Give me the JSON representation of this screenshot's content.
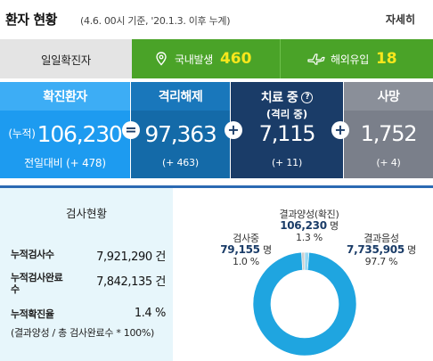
{
  "header": {
    "title": "환자 현황",
    "subtitle": "(4.6. 00시 기준, '20.1.3. 이후 누계)",
    "detail_link": "자세히"
  },
  "daily": {
    "label": "일일확진자",
    "domestic": {
      "label": "국내발생",
      "value": "460",
      "icon": "map-pin-icon"
    },
    "overseas": {
      "label": "해외유입",
      "value": "18",
      "icon": "airplane-icon"
    }
  },
  "stats": {
    "confirmed": {
      "title": "확진환자",
      "prefix": "(누적)",
      "value": "106,230",
      "delta": "전일대비 (+ 478)"
    },
    "released": {
      "title": "격리해제",
      "value": "97,363",
      "delta": "(+ 463)"
    },
    "treatment": {
      "title": "치료 중",
      "subtitle": "(격리 중)",
      "value": "7,115",
      "delta": "(+ 11)"
    },
    "deaths": {
      "title": "사망",
      "value": "1,752",
      "delta": "(+ 4)"
    },
    "ops": {
      "equals": "=",
      "plus": "+"
    }
  },
  "tests": {
    "title": "검사현황",
    "rows": [
      {
        "label": "누적검사수",
        "value": "7,921,290 건"
      },
      {
        "label": "누적검사완료수",
        "value": "7,842,135 건"
      },
      {
        "label": "누적확진율",
        "value": "1.4 %"
      }
    ],
    "note": "(결과양성 / 총 검사완료수 * 100%)"
  },
  "chart_data": {
    "type": "pie",
    "labels": [
      "검사중",
      "결과양성(확진)",
      "결과음성"
    ],
    "values": [
      79155,
      106230,
      7735905
    ],
    "value_labels": [
      "79,155",
      "106,230",
      "7,735,905"
    ],
    "unit": "명",
    "percents": [
      "1.0 %",
      "1.3 %",
      "97.7 %"
    ],
    "colors": [
      "#cfcfcf",
      "#9ad9f3",
      "#1fa5e0"
    ]
  }
}
